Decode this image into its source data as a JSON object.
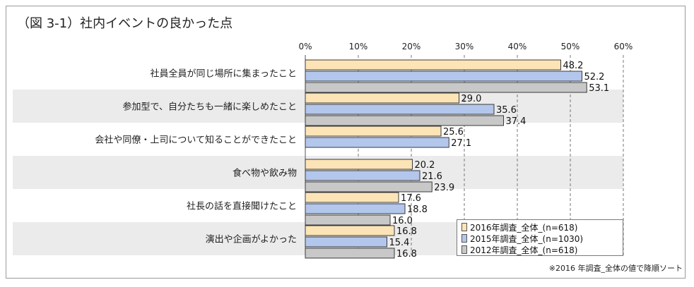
{
  "chart_data": {
    "type": "bar",
    "orientation": "horizontal",
    "title": "（図 3-1）社内イベントの良かった点",
    "note": "※2016 年調査_全体の値で降順ソート",
    "xlim": [
      0,
      60
    ],
    "xticks": [
      "0%",
      "10%",
      "20%",
      "30%",
      "40%",
      "50%",
      "60%"
    ],
    "categories": [
      "社員全員が同じ場所に集まったこと",
      "参加型で、自分たちも一緒に楽しめたこと",
      "会社や同僚・上司について知ることができたこと",
      "食べ物や飲み物",
      "社長の話を直接聞けたこと",
      "演出や企画がよかった"
    ],
    "series": [
      {
        "name": "2016年調査_全体_(n=618)",
        "color": "#fce4b6",
        "values": [
          48.2,
          29.0,
          25.6,
          20.2,
          17.6,
          16.8
        ],
        "labels": [
          "48.2",
          "29.0",
          "25.6",
          "20.2",
          "17.6",
          "16.8"
        ]
      },
      {
        "name": "2015年調査_全体_(n=1030)",
        "color": "#b3c6ec",
        "values": [
          52.2,
          35.6,
          27.1,
          21.6,
          18.8,
          15.4
        ],
        "labels": [
          "52.2",
          "35.6",
          "27.1",
          "21.6",
          "18.8",
          "15.4"
        ]
      },
      {
        "name": "2012年調査_全体_(n=618)",
        "color": "#c8c8c8",
        "values": [
          53.1,
          37.4,
          null,
          23.9,
          16.0,
          16.8
        ],
        "labels": [
          "53.1",
          "37.4",
          null,
          "23.9",
          "16.0",
          "16.8"
        ]
      }
    ],
    "legend": "bottom-right",
    "grid": true
  }
}
